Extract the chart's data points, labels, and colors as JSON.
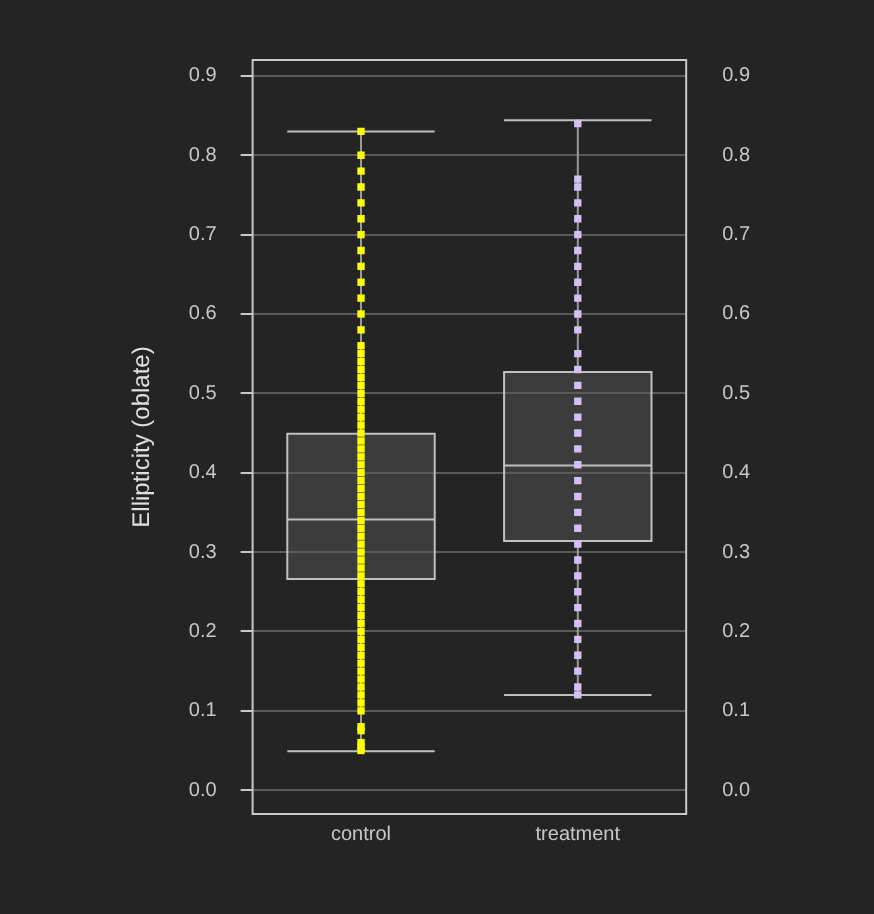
{
  "chart_data": {
    "type": "box",
    "ylabel": "Ellipticity (oblate)",
    "categories": [
      "control",
      "treatment"
    ],
    "boxes": [
      {
        "low": 0.049,
        "q1": 0.266,
        "median": 0.341,
        "q3": 0.449,
        "high": 0.83
      },
      {
        "low": 0.12,
        "q1": 0.314,
        "median": 0.409,
        "q3": 0.527,
        "high": 0.844
      }
    ],
    "series": [
      {
        "type": "scatter",
        "color": "#ffff00",
        "x": [
          "control",
          "control",
          "control",
          "control",
          "control",
          "control",
          "control",
          "control",
          "control",
          "control",
          "control",
          "control",
          "control",
          "control",
          "control",
          "control",
          "control",
          "control",
          "control",
          "control",
          "control",
          "control",
          "control",
          "control",
          "control",
          "control",
          "control",
          "control",
          "control",
          "control",
          "control",
          "control",
          "control",
          "control",
          "control",
          "control",
          "control",
          "control",
          "control",
          "control",
          "control",
          "control",
          "control",
          "control",
          "control",
          "control",
          "control",
          "control",
          "control",
          "control",
          "control",
          "control",
          "control",
          "control",
          "control",
          "control",
          "control",
          "control",
          "control",
          "control",
          "control",
          "control",
          "control",
          "control",
          "control"
        ],
        "values": [
          0.05,
          0.055,
          0.06,
          0.075,
          0.08,
          0.1,
          0.11,
          0.12,
          0.13,
          0.14,
          0.15,
          0.16,
          0.17,
          0.18,
          0.19,
          0.2,
          0.21,
          0.22,
          0.23,
          0.24,
          0.25,
          0.26,
          0.27,
          0.28,
          0.29,
          0.3,
          0.31,
          0.32,
          0.33,
          0.34,
          0.35,
          0.36,
          0.37,
          0.38,
          0.39,
          0.4,
          0.41,
          0.42,
          0.43,
          0.44,
          0.45,
          0.46,
          0.47,
          0.48,
          0.49,
          0.5,
          0.51,
          0.52,
          0.53,
          0.54,
          0.55,
          0.56,
          0.58,
          0.6,
          0.62,
          0.64,
          0.66,
          0.68,
          0.7,
          0.72,
          0.74,
          0.76,
          0.78,
          0.8,
          0.83
        ]
      },
      {
        "type": "scatter",
        "color": "#d4c0f2",
        "x": [
          "treatment",
          "treatment",
          "treatment",
          "treatment",
          "treatment",
          "treatment",
          "treatment",
          "treatment",
          "treatment",
          "treatment",
          "treatment",
          "treatment",
          "treatment",
          "treatment",
          "treatment",
          "treatment",
          "treatment",
          "treatment",
          "treatment",
          "treatment",
          "treatment",
          "treatment",
          "treatment",
          "treatment",
          "treatment",
          "treatment",
          "treatment",
          "treatment",
          "treatment",
          "treatment",
          "treatment",
          "treatment",
          "treatment",
          "treatment",
          "treatment"
        ],
        "values": [
          0.12,
          0.13,
          0.15,
          0.17,
          0.19,
          0.21,
          0.23,
          0.25,
          0.27,
          0.29,
          0.31,
          0.33,
          0.35,
          0.37,
          0.39,
          0.41,
          0.43,
          0.45,
          0.47,
          0.49,
          0.51,
          0.53,
          0.55,
          0.58,
          0.6,
          0.62,
          0.64,
          0.66,
          0.68,
          0.7,
          0.72,
          0.74,
          0.76,
          0.77,
          0.84
        ]
      }
    ],
    "ylim": [
      -0.03,
      0.92
    ],
    "yticks": [
      {
        "value": 0,
        "label": "0.0"
      },
      0.1,
      0.2,
      0.3,
      0.4,
      0.5,
      0.6,
      0.7,
      0.8,
      0.9
    ],
    "y2lim": [
      -0.03,
      0.92
    ],
    "y2ticks": [
      {
        "value": 0,
        "label": "0.0"
      },
      0.1,
      0.2,
      0.3,
      0.4,
      0.5,
      0.6,
      0.7,
      0.8,
      0.9
    ],
    "grid": "y",
    "marker": "square",
    "legend": false
  }
}
